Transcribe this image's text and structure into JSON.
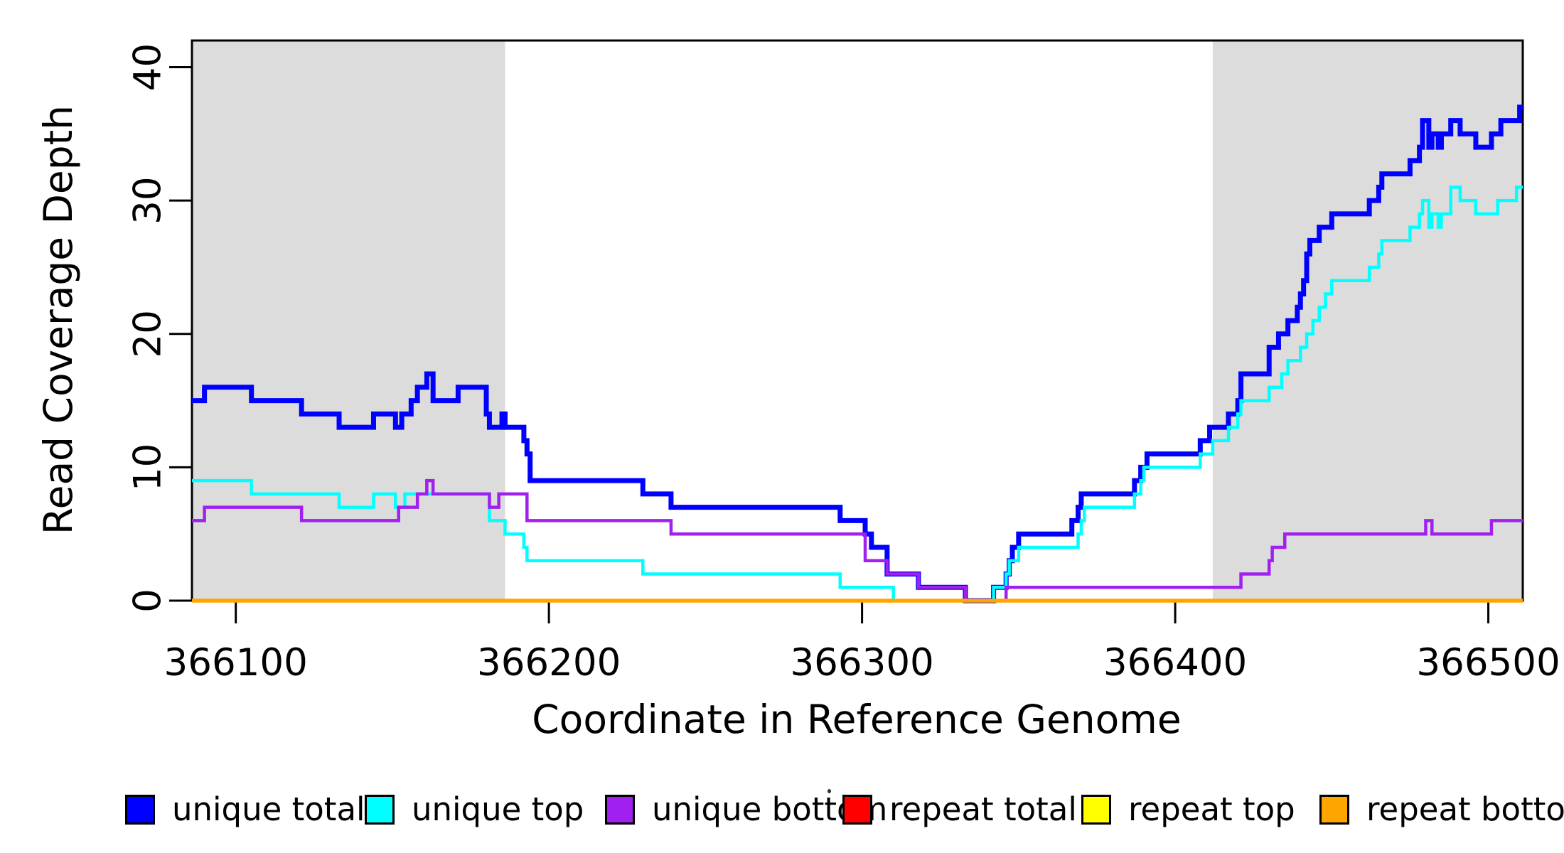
{
  "figure": {
    "xlabel": "Coordinate in Reference Genome",
    "ylabel": "Read Coverage Depth"
  },
  "chart_data": {
    "type": "line",
    "subtype": "step-after",
    "title": "",
    "xlabel": "Coordinate in Reference Genome",
    "ylabel": "Read Coverage Depth",
    "x_domain": [
      366086,
      366511
    ],
    "y_domain": [
      0,
      42
    ],
    "x_ticks": [
      "366100",
      "366200",
      "366300",
      "366400",
      "366500"
    ],
    "x_tick_values": [
      366100,
      366200,
      366300,
      366400,
      366500
    ],
    "y_ticks": [
      "0",
      "10",
      "20",
      "30",
      "40"
    ],
    "y_tick_values": [
      0,
      10,
      20,
      30,
      40
    ],
    "grid": false,
    "background_color": "#ffffff",
    "shaded_region_color": "#DCDCDC",
    "shaded_regions": [
      {
        "x0": 366086,
        "x1": 366186
      },
      {
        "x0": 366412,
        "x1": 366511
      }
    ],
    "series": [
      {
        "name": "unique total",
        "color": "#0000FF",
        "line_width": 7,
        "points": [
          [
            366086,
            15
          ],
          [
            366090,
            16
          ],
          [
            366105,
            15
          ],
          [
            366121,
            14
          ],
          [
            366133,
            13
          ],
          [
            366144,
            14
          ],
          [
            366151,
            13
          ],
          [
            366153,
            14
          ],
          [
            366156,
            15
          ],
          [
            366158,
            16
          ],
          [
            366161,
            17
          ],
          [
            366163,
            15
          ],
          [
            366171,
            16
          ],
          [
            366180,
            14
          ],
          [
            366181,
            13
          ],
          [
            366185,
            14
          ],
          [
            366186,
            13
          ],
          [
            366192,
            12
          ],
          [
            366193,
            11
          ],
          [
            366194,
            9
          ],
          [
            366230,
            8
          ],
          [
            366239,
            7
          ],
          [
            366293,
            6
          ],
          [
            366301,
            5
          ],
          [
            366303,
            4
          ],
          [
            366308,
            2
          ],
          [
            366318,
            1
          ],
          [
            366333,
            0
          ],
          [
            366342,
            1
          ],
          [
            366346,
            2
          ],
          [
            366347,
            3
          ],
          [
            366348,
            4
          ],
          [
            366350,
            5
          ],
          [
            366367,
            6
          ],
          [
            366369,
            7
          ],
          [
            366370,
            8
          ],
          [
            366387,
            9
          ],
          [
            366389,
            10
          ],
          [
            366391,
            11
          ],
          [
            366408,
            12
          ],
          [
            366411,
            13
          ],
          [
            366417,
            14
          ],
          [
            366420,
            15
          ],
          [
            366421,
            17
          ],
          [
            366430,
            19
          ],
          [
            366433,
            20
          ],
          [
            366436,
            21
          ],
          [
            366439,
            22
          ],
          [
            366440,
            23
          ],
          [
            366441,
            24
          ],
          [
            366442,
            26
          ],
          [
            366443,
            27
          ],
          [
            366446,
            28
          ],
          [
            366450,
            29
          ],
          [
            366462,
            30
          ],
          [
            366465,
            31
          ],
          [
            366466,
            32
          ],
          [
            366475,
            33
          ],
          [
            366478,
            34
          ],
          [
            366479,
            36
          ],
          [
            366481,
            34
          ],
          [
            366482,
            35
          ],
          [
            366484,
            34
          ],
          [
            366485,
            35
          ],
          [
            366488,
            36
          ],
          [
            366491,
            35
          ],
          [
            366496,
            34
          ],
          [
            366501,
            35
          ],
          [
            366504,
            36
          ],
          [
            366510,
            37
          ]
        ]
      },
      {
        "name": "unique top",
        "color": "#00FFFF",
        "line_width": 4.5,
        "points": [
          [
            366086,
            9
          ],
          [
            366105,
            8
          ],
          [
            366133,
            7
          ],
          [
            366144,
            8
          ],
          [
            366151,
            7
          ],
          [
            366154,
            8
          ],
          [
            366181,
            6
          ],
          [
            366186,
            5
          ],
          [
            366192,
            4
          ],
          [
            366193,
            3
          ],
          [
            366230,
            2
          ],
          [
            366293,
            1
          ],
          [
            366310,
            0
          ],
          [
            366342,
            1
          ],
          [
            366346,
            2
          ],
          [
            366347,
            3
          ],
          [
            366350,
            4
          ],
          [
            366369,
            5
          ],
          [
            366370,
            6
          ],
          [
            366371,
            7
          ],
          [
            366387,
            8
          ],
          [
            366389,
            9
          ],
          [
            366390,
            10
          ],
          [
            366408,
            11
          ],
          [
            366412,
            12
          ],
          [
            366417,
            13
          ],
          [
            366420,
            14
          ],
          [
            366421,
            15
          ],
          [
            366430,
            16
          ],
          [
            366434,
            17
          ],
          [
            366436,
            18
          ],
          [
            366440,
            19
          ],
          [
            366442,
            20
          ],
          [
            366444,
            21
          ],
          [
            366446,
            22
          ],
          [
            366448,
            23
          ],
          [
            366450,
            24
          ],
          [
            366462,
            25
          ],
          [
            366465,
            26
          ],
          [
            366466,
            27
          ],
          [
            366475,
            28
          ],
          [
            366478,
            29
          ],
          [
            366479,
            30
          ],
          [
            366481,
            28
          ],
          [
            366482,
            29
          ],
          [
            366484,
            28
          ],
          [
            366485,
            29
          ],
          [
            366488,
            31
          ],
          [
            366491,
            30
          ],
          [
            366496,
            29
          ],
          [
            366503,
            30
          ],
          [
            366509,
            31
          ]
        ]
      },
      {
        "name": "unique bottom",
        "color": "#A020F0",
        "line_width": 4.5,
        "points": [
          [
            366086,
            6
          ],
          [
            366090,
            7
          ],
          [
            366121,
            6
          ],
          [
            366152,
            7
          ],
          [
            366158,
            8
          ],
          [
            366161,
            9
          ],
          [
            366163,
            8
          ],
          [
            366181,
            7
          ],
          [
            366184,
            8
          ],
          [
            366193,
            6
          ],
          [
            366239,
            5
          ],
          [
            366301,
            3
          ],
          [
            366308,
            2
          ],
          [
            366318,
            1
          ],
          [
            366333,
            0
          ],
          [
            366346,
            1
          ],
          [
            366421,
            2
          ],
          [
            366430,
            3
          ],
          [
            366431,
            4
          ],
          [
            366435,
            5
          ],
          [
            366480,
            6
          ],
          [
            366482,
            5
          ],
          [
            366501,
            6
          ]
        ]
      },
      {
        "name": "repeat total",
        "color": "#FF0000",
        "line_width": 4,
        "points": [
          [
            366086,
            0
          ]
        ]
      },
      {
        "name": "repeat top",
        "color": "#FFFF00",
        "line_width": 4,
        "points": [
          [
            366086,
            0
          ]
        ]
      },
      {
        "name": "repeat bottom",
        "color": "#FFA500",
        "line_width": 5.5,
        "points": [
          [
            366086,
            0
          ]
        ]
      }
    ],
    "legend": {
      "position": "bottom",
      "entries": [
        {
          "label": "unique total",
          "color": "#0000FF"
        },
        {
          "label": "unique top",
          "color": "#00FFFF"
        },
        {
          "label": "unique bottom",
          "color": "#A020F0"
        },
        {
          "label": "repeat total",
          "color": "#FF0000"
        },
        {
          "label": "repeat top",
          "color": "#FFFF00"
        },
        {
          "label": "repeat bottom",
          "color": "#FFA500"
        }
      ]
    }
  }
}
